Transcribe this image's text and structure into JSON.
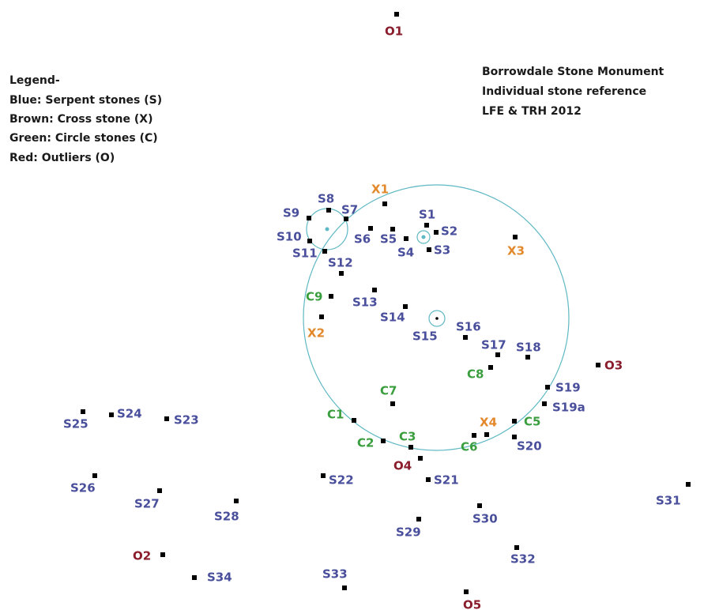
{
  "legend": {
    "title": "Legend-"
  },
  "title": {
    "lines": [
      "Borrowdale Stone Monument",
      "Individual stone reference",
      "LFE & TRH 2012"
    ]
  },
  "groups": [
    {
      "legend": "Blue: Serpent stones (S)",
      "color": "#4a4f9c",
      "stones": [
        "S1",
        "S2",
        "S3",
        "S4",
        "S5",
        "S6",
        "S7",
        "S8",
        "S9",
        "S10",
        "S11",
        "S12",
        "S13",
        "S14",
        "S15",
        "S16",
        "S17",
        "S18",
        "S19",
        "S19a",
        "S20",
        "S21",
        "S22",
        "S23",
        "S24",
        "S25",
        "S26",
        "S27",
        "S28",
        "S29",
        "S30",
        "S31",
        "S32",
        "S33",
        "S34"
      ]
    },
    {
      "legend": "Brown: Cross stone (X)",
      "color": "#e3892b",
      "stones": [
        "X1",
        "X2",
        "X3",
        "X4"
      ]
    },
    {
      "legend": "Green: Circle stones (C)",
      "color": "#3a9e3e",
      "stones": [
        "C1",
        "C2",
        "C3",
        "C5",
        "C6",
        "C7",
        "C8",
        "C9"
      ]
    },
    {
      "legend": "Red: Outliers (O)",
      "color": "#8a1c2c",
      "stones": [
        "O1",
        "O2",
        "O3",
        "O4",
        "O5"
      ]
    }
  ]
}
